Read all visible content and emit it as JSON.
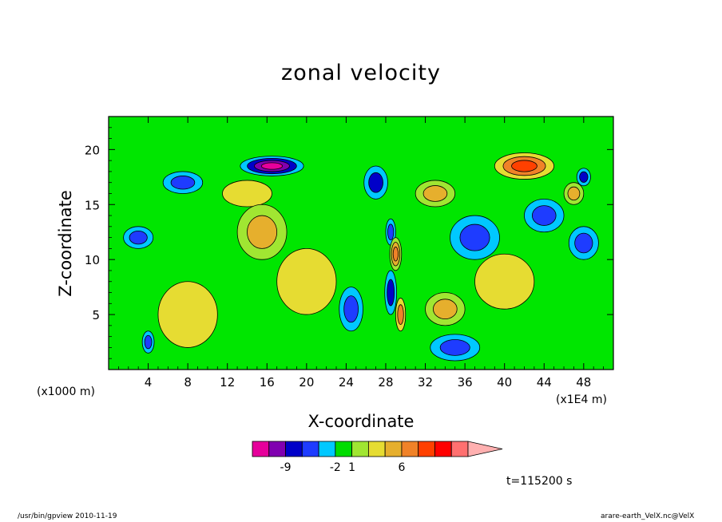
{
  "chart_data": {
    "type": "heatmap",
    "title": "zonal velocity",
    "xlabel": "X-coordinate",
    "ylabel": "Z-coordinate",
    "x_unit_left": "(x1000 m)",
    "x_unit_right": "(x1E4 m)",
    "xlim": [
      0,
      51
    ],
    "ylim": [
      0,
      23
    ],
    "x_ticks": [
      "4",
      "8",
      "12",
      "16",
      "20",
      "24",
      "28",
      "32",
      "36",
      "40",
      "44",
      "48"
    ],
    "y_ticks": [
      "5",
      "10",
      "15",
      "20"
    ],
    "colorbar": {
      "colors": [
        "#e6009b",
        "#8000b0",
        "#0000c8",
        "#1e3cff",
        "#00c8ff",
        "#00dc00",
        "#a0e632",
        "#e6dc32",
        "#e6af2d",
        "#f08228",
        "#ff4000",
        "#ff0000",
        "#ff7070"
      ],
      "extend_color": "#ffb0b0",
      "tick_labels": [
        "-9",
        "-2",
        "1",
        "6"
      ]
    },
    "annotation": "t=115200 s",
    "background_color": "#00e600",
    "features": [
      {
        "x": 16.5,
        "z": 18.5,
        "value": -8,
        "sx": 3.2,
        "sz": 0.9
      },
      {
        "x": 7.5,
        "z": 17.0,
        "value": -3,
        "sx": 2.0,
        "sz": 1.0
      },
      {
        "x": 14.0,
        "z": 16.0,
        "value": 2,
        "sx": 2.5,
        "sz": 1.2
      },
      {
        "x": 15.5,
        "z": 12.5,
        "value": 3,
        "sx": 2.5,
        "sz": 2.5
      },
      {
        "x": 27.0,
        "z": 17.0,
        "value": -4,
        "sx": 1.2,
        "sz": 1.5
      },
      {
        "x": 28.5,
        "z": 12.5,
        "value": -3,
        "sx": 0.5,
        "sz": 1.2
      },
      {
        "x": 29.0,
        "z": 10.5,
        "value": 5,
        "sx": 0.6,
        "sz": 1.5
      },
      {
        "x": 28.5,
        "z": 7.0,
        "value": -4,
        "sx": 0.6,
        "sz": 2.0
      },
      {
        "x": 29.5,
        "z": 5.0,
        "value": 4,
        "sx": 0.5,
        "sz": 1.5
      },
      {
        "x": 24.5,
        "z": 5.5,
        "value": -3,
        "sx": 1.2,
        "sz": 2.0
      },
      {
        "x": 34.0,
        "z": 5.5,
        "value": 3,
        "sx": 2.0,
        "sz": 1.5
      },
      {
        "x": 33.0,
        "z": 16.0,
        "value": 3,
        "sx": 2.0,
        "sz": 1.2
      },
      {
        "x": 42.0,
        "z": 18.5,
        "value": 6,
        "sx": 3.0,
        "sz": 1.2
      },
      {
        "x": 37.0,
        "z": 12.0,
        "value": -3,
        "sx": 2.5,
        "sz": 2.0
      },
      {
        "x": 44.0,
        "z": 14.0,
        "value": -3,
        "sx": 2.0,
        "sz": 1.5
      },
      {
        "x": 48.0,
        "z": 11.5,
        "value": -3,
        "sx": 1.5,
        "sz": 1.5
      },
      {
        "x": 48.0,
        "z": 17.5,
        "value": -4,
        "sx": 0.7,
        "sz": 0.8
      },
      {
        "x": 47.0,
        "z": 16.0,
        "value": 3,
        "sx": 1.0,
        "sz": 1.0
      },
      {
        "x": 3.0,
        "z": 12.0,
        "value": -3,
        "sx": 1.5,
        "sz": 1.0
      },
      {
        "x": 4.0,
        "z": 2.5,
        "value": -3,
        "sx": 0.6,
        "sz": 1.0
      },
      {
        "x": 35.0,
        "z": 2.0,
        "value": -3,
        "sx": 2.5,
        "sz": 1.2
      },
      {
        "x": 40.0,
        "z": 8.0,
        "value": 2,
        "sx": 3.0,
        "sz": 2.5
      },
      {
        "x": 8.0,
        "z": 5.0,
        "value": 2,
        "sx": 3.0,
        "sz": 3.0
      },
      {
        "x": 20.0,
        "z": 8.0,
        "value": 2,
        "sx": 3.0,
        "sz": 3.0
      }
    ]
  },
  "footer": {
    "left": "/usr/bin/gpview   2010-11-19",
    "right": "arare-earth_VelX.nc@VelX"
  }
}
